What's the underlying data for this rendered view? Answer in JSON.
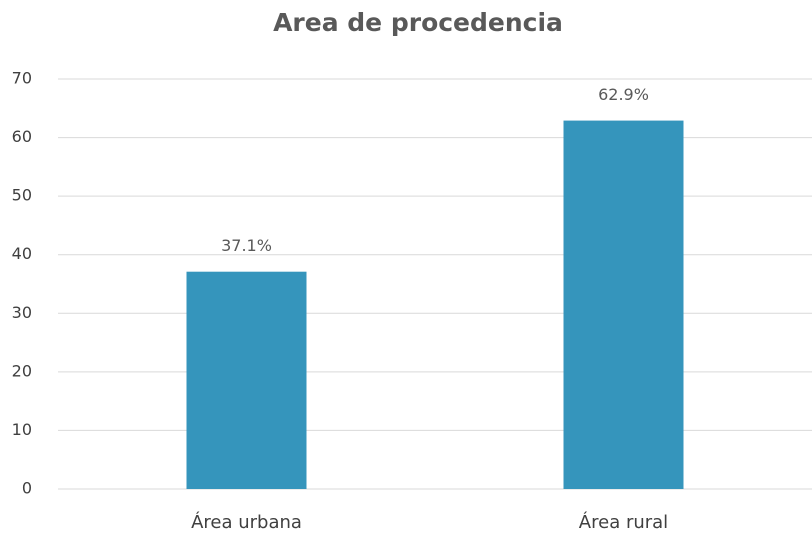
{
  "chart_data": {
    "type": "bar",
    "title": "Area de procedencia",
    "categories": [
      "Área urbana",
      "Área rural"
    ],
    "values": [
      37.1,
      62.9
    ],
    "value_labels": [
      "37.1%",
      "62.9%"
    ],
    "color": "#3595bc",
    "ylim": [
      0,
      70
    ],
    "yticks": [
      0,
      10,
      20,
      30,
      40,
      50,
      60,
      70
    ],
    "grid": true
  }
}
